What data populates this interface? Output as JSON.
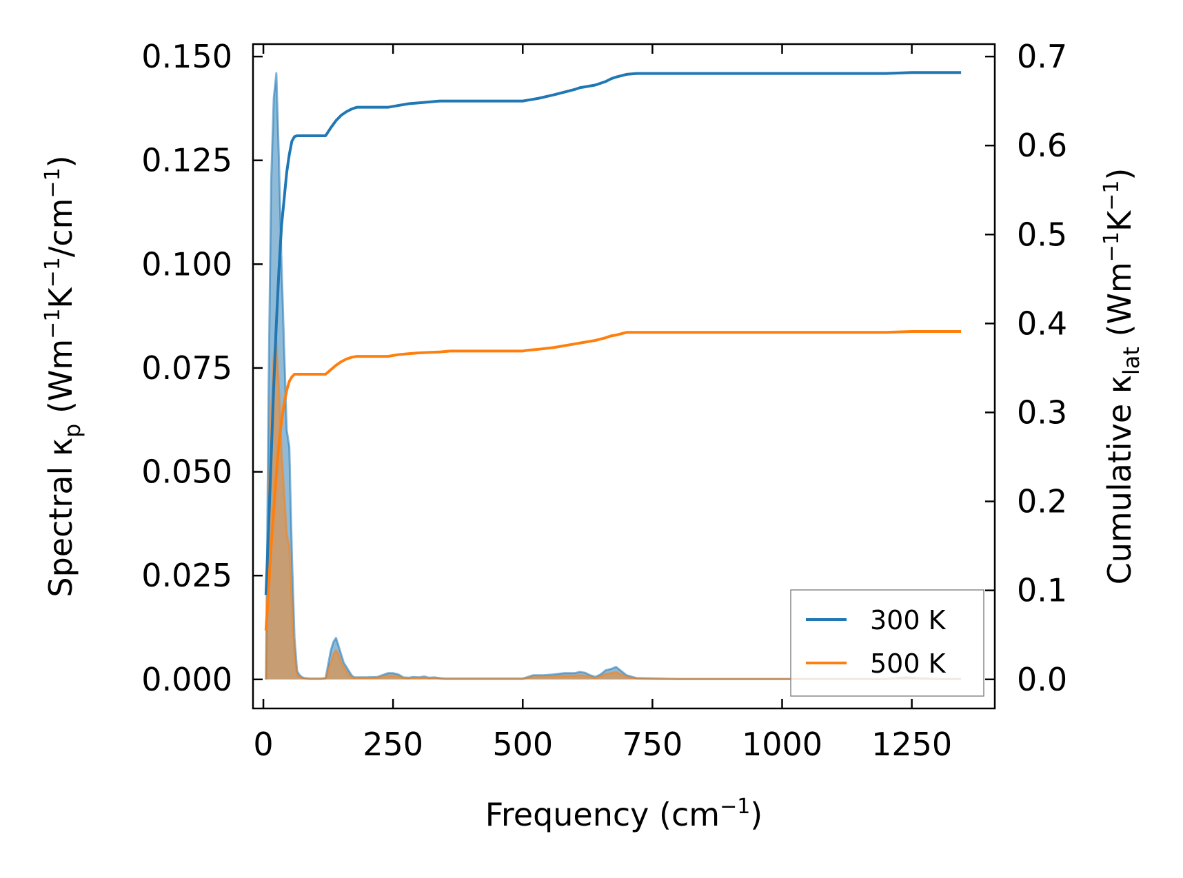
{
  "chart_data": {
    "type": "line",
    "xlabel": {
      "main": "Frequency (cm",
      "sup": "−1",
      "close": ")"
    },
    "ylabel_left": {
      "a": "Spectral κ",
      "sub": "p",
      "b": " (Wm",
      "sup1": "−1",
      "c": "K",
      "sup2": "−1",
      "d": "/cm",
      "sup3": "−1",
      "e": ")"
    },
    "ylabel_right": {
      "a": "Cumulative κ",
      "sub": "lat",
      "b": " (Wm",
      "sup1": "−1",
      "c": "K",
      "sup2": "−1",
      "d": ")"
    },
    "xlim": [
      -20,
      1410
    ],
    "ylim_left": [
      -0.007,
      0.153
    ],
    "ylim_right": [
      -0.0327,
      0.714
    ],
    "xticks": [
      0,
      250,
      500,
      750,
      1000,
      1250
    ],
    "xtick_labels": [
      "0",
      "250",
      "500",
      "750",
      "1000",
      "1250"
    ],
    "yticks_left": [
      0,
      0.025,
      0.05,
      0.075,
      0.1,
      0.125,
      0.15
    ],
    "ytick_labels_left": [
      "0.000",
      "0.025",
      "0.050",
      "0.075",
      "0.100",
      "0.125",
      "0.150"
    ],
    "yticks_right": [
      0,
      0.1,
      0.2,
      0.3,
      0.4,
      0.5,
      0.6,
      0.7
    ],
    "ytick_labels_right": [
      "0.0",
      "0.1",
      "0.2",
      "0.3",
      "0.4",
      "0.5",
      "0.6",
      "0.7"
    ],
    "legend": {
      "placement": "lower-right",
      "entries": [
        "300 K",
        "500 K"
      ]
    },
    "series": [
      {
        "name": "300 K",
        "color": "#1f77b4",
        "spectral": {
          "x": [
            5,
            10,
            15,
            20,
            25,
            30,
            35,
            40,
            45,
            50,
            55,
            60,
            65,
            70,
            75,
            80,
            90,
            100,
            110,
            120,
            130,
            135,
            140,
            145,
            150,
            155,
            160,
            165,
            170,
            175,
            180,
            190,
            200,
            220,
            240,
            250,
            260,
            270,
            280,
            290,
            300,
            310,
            320,
            330,
            340,
            350,
            360,
            400,
            450,
            500,
            520,
            540,
            560,
            580,
            600,
            610,
            620,
            630,
            640,
            650,
            660,
            670,
            680,
            690,
            700,
            720,
            760,
            800,
            900,
            1000,
            1100,
            1200,
            1220,
            1240,
            1260,
            1300,
            1345
          ],
          "y": [
            0.0,
            0.07,
            0.12,
            0.14,
            0.146,
            0.125,
            0.1,
            0.08,
            0.06,
            0.056,
            0.03,
            0.01,
            0.002,
            0.001,
            0.0005,
            0.0003,
            0.0002,
            0.0002,
            0.0002,
            0.0003,
            0.007,
            0.009,
            0.01,
            0.008,
            0.006,
            0.004,
            0.003,
            0.002,
            0.001,
            0.0005,
            0.0005,
            0.0005,
            0.0005,
            0.0006,
            0.0015,
            0.0015,
            0.0012,
            0.0005,
            0.0004,
            0.0006,
            0.0005,
            0.0007,
            0.0004,
            0.0005,
            0.0003,
            0.0002,
            0.0002,
            0.0002,
            0.0002,
            0.0002,
            0.001,
            0.001,
            0.0012,
            0.0015,
            0.0015,
            0.0018,
            0.0016,
            0.001,
            0.0006,
            0.0012,
            0.0022,
            0.0025,
            0.003,
            0.002,
            0.001,
            0.0003,
            0.0002,
            0.0001,
            0.0001,
            0.0001,
            0.0001,
            0.0001,
            0.0003,
            0.0005,
            0.0003,
            0.0001,
            0.0001
          ]
        },
        "cumulative": {
          "x": [
            5,
            10,
            15,
            20,
            25,
            30,
            35,
            40,
            45,
            50,
            55,
            60,
            65,
            70,
            80,
            100,
            120,
            130,
            140,
            150,
            160,
            170,
            180,
            200,
            240,
            260,
            280,
            300,
            340,
            360,
            400,
            500,
            510,
            530,
            560,
            600,
            610,
            620,
            640,
            660,
            670,
            680,
            700,
            720,
            800,
            1000,
            1200,
            1250,
            1345
          ],
          "y": [
            0.095,
            0.17,
            0.25,
            0.33,
            0.4,
            0.46,
            0.51,
            0.54,
            0.57,
            0.59,
            0.605,
            0.61,
            0.611,
            0.611,
            0.611,
            0.611,
            0.611,
            0.62,
            0.628,
            0.634,
            0.638,
            0.641,
            0.643,
            0.643,
            0.643,
            0.645,
            0.647,
            0.648,
            0.65,
            0.65,
            0.65,
            0.65,
            0.651,
            0.653,
            0.657,
            0.663,
            0.665,
            0.666,
            0.668,
            0.672,
            0.675,
            0.677,
            0.68,
            0.681,
            0.681,
            0.681,
            0.681,
            0.682,
            0.682
          ]
        }
      },
      {
        "name": "500 K",
        "color": "#ff7f0e",
        "spectral": {
          "x": [
            5,
            10,
            15,
            20,
            25,
            30,
            35,
            40,
            45,
            50,
            55,
            60,
            65,
            70,
            75,
            80,
            90,
            100,
            110,
            120,
            130,
            135,
            140,
            145,
            150,
            155,
            160,
            165,
            170,
            175,
            180,
            190,
            200,
            220,
            240,
            250,
            260,
            270,
            280,
            290,
            300,
            310,
            320,
            330,
            340,
            350,
            360,
            400,
            450,
            500,
            520,
            540,
            560,
            580,
            600,
            610,
            620,
            630,
            640,
            650,
            660,
            670,
            680,
            690,
            700,
            720,
            760,
            800,
            900,
            1000,
            1100,
            1200,
            1220,
            1240,
            1260,
            1300,
            1345
          ],
          "y": [
            0.0,
            0.04,
            0.065,
            0.078,
            0.082,
            0.07,
            0.055,
            0.045,
            0.035,
            0.032,
            0.018,
            0.006,
            0.001,
            0.0006,
            0.0003,
            0.0002,
            0.0001,
            0.0001,
            0.0001,
            0.0002,
            0.004,
            0.006,
            0.007,
            0.006,
            0.004,
            0.003,
            0.002,
            0.001,
            0.0006,
            0.0003,
            0.0003,
            0.0003,
            0.0003,
            0.0004,
            0.0009,
            0.0009,
            0.0007,
            0.0003,
            0.0002,
            0.0003,
            0.0003,
            0.0004,
            0.0002,
            0.0003,
            0.0002,
            0.0001,
            0.0001,
            0.0001,
            0.0001,
            0.0001,
            0.0006,
            0.0006,
            0.0007,
            0.0009,
            0.0009,
            0.001,
            0.0009,
            0.0006,
            0.0003,
            0.0007,
            0.0013,
            0.0015,
            0.0018,
            0.0012,
            0.0006,
            0.0002,
            0.0001,
            0.0001,
            0.0001,
            0.0001,
            0.0001,
            0.0001,
            0.0002,
            0.0003,
            0.0002,
            0.0001,
            0.0001
          ]
        },
        "cumulative": {
          "x": [
            5,
            10,
            15,
            20,
            25,
            30,
            35,
            40,
            45,
            50,
            55,
            60,
            65,
            70,
            80,
            100,
            120,
            130,
            140,
            150,
            160,
            170,
            180,
            200,
            240,
            260,
            280,
            300,
            340,
            360,
            400,
            500,
            510,
            530,
            560,
            600,
            610,
            620,
            640,
            660,
            670,
            680,
            700,
            720,
            800,
            1000,
            1200,
            1250,
            1345
          ],
          "y": [
            0.055,
            0.1,
            0.15,
            0.19,
            0.23,
            0.265,
            0.29,
            0.31,
            0.325,
            0.335,
            0.34,
            0.343,
            0.343,
            0.343,
            0.343,
            0.343,
            0.343,
            0.348,
            0.353,
            0.357,
            0.36,
            0.362,
            0.363,
            0.363,
            0.363,
            0.365,
            0.366,
            0.367,
            0.368,
            0.369,
            0.369,
            0.369,
            0.37,
            0.371,
            0.373,
            0.377,
            0.378,
            0.379,
            0.381,
            0.384,
            0.386,
            0.387,
            0.39,
            0.39,
            0.39,
            0.39,
            0.39,
            0.391,
            0.391
          ]
        }
      }
    ]
  }
}
